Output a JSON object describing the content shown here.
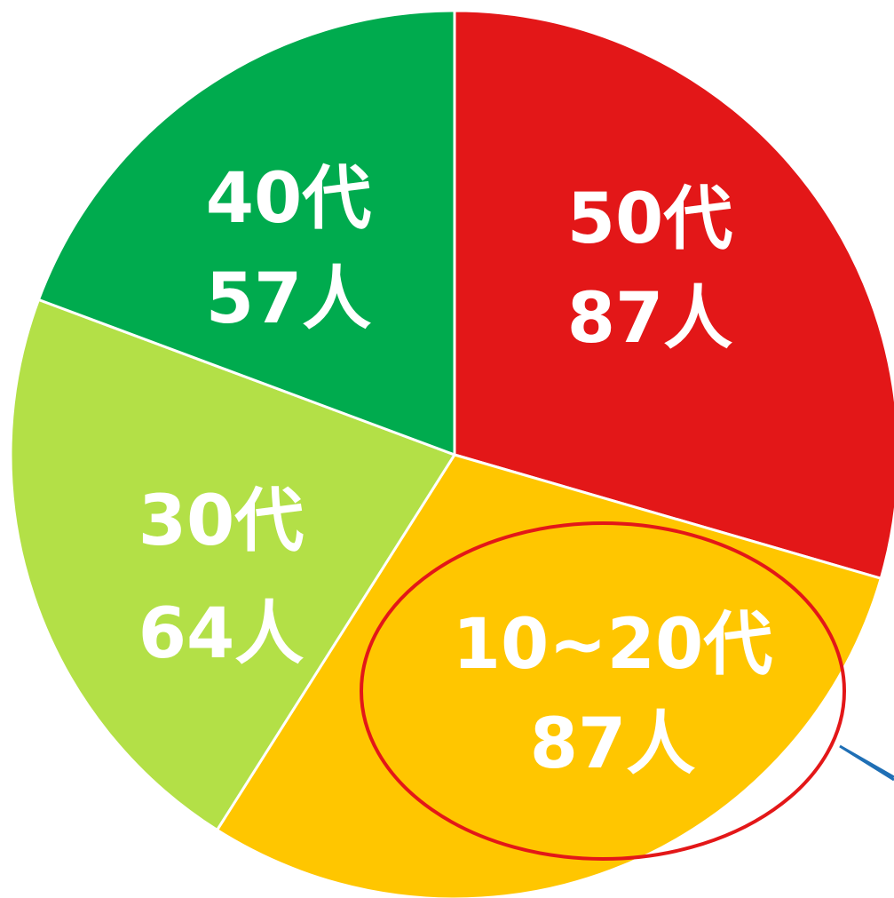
{
  "chart_data": {
    "type": "pie",
    "start_angle_deg": 0,
    "direction": "clockwise",
    "slices": [
      {
        "category": "50代",
        "count_label": "87人",
        "value": 87,
        "color": "#e31718"
      },
      {
        "category": "10~20代",
        "count_label": "87人",
        "value": 87,
        "color": "#ffc600"
      },
      {
        "category": "30代",
        "count_label": "64人",
        "value": 64,
        "color": "#b3e047"
      },
      {
        "category": "40代",
        "count_label": "57人",
        "value": 57,
        "color": "#00ab4e"
      }
    ],
    "highlight": {
      "target": "10~20代",
      "ellipse_color": "#e31718",
      "callout_color": "#1f6fb5"
    }
  }
}
